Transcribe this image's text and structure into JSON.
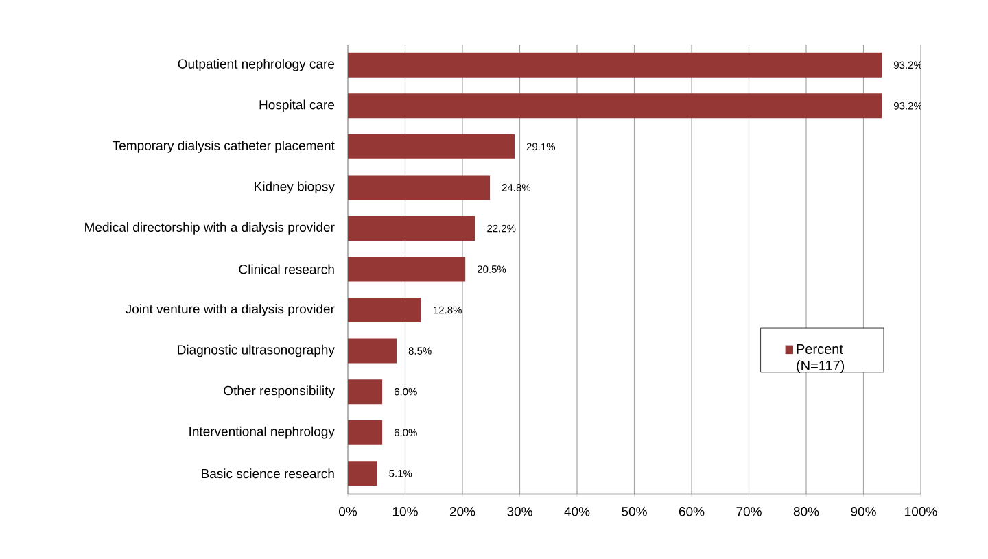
{
  "chart_data": {
    "type": "bar",
    "orientation": "horizontal",
    "categories": [
      "Outpatient nephrology care",
      "Hospital care",
      "Temporary dialysis catheter placement",
      "Kidney biopsy",
      "Medical directorship with a dialysis provider",
      "Clinical research",
      "Joint venture with a dialysis provider",
      "Diagnostic ultrasonography",
      "Other responsibility",
      "Interventional nephrology",
      "Basic science research"
    ],
    "series": [
      {
        "name": "Percent (N=117)",
        "color": "#953735",
        "values": [
          93.2,
          93.2,
          29.1,
          24.8,
          22.2,
          20.5,
          12.8,
          8.5,
          6.0,
          6.0,
          5.1
        ],
        "value_labels": [
          "93.2%",
          "93.2%",
          "29.1%",
          "24.8%",
          "22.2%",
          "20.5%",
          "12.8%",
          "8.5%",
          "6.0%",
          "6.0%",
          "5.1%"
        ]
      }
    ],
    "xlim": [
      0,
      100
    ],
    "xticks": [
      {
        "value": 0,
        "label": "0%"
      },
      {
        "value": 10,
        "label": "10%"
      },
      {
        "value": 20,
        "label": "20%"
      },
      {
        "value": 30,
        "label": "30%"
      },
      {
        "value": 40,
        "label": "40%"
      },
      {
        "value": 50,
        "label": "50%"
      },
      {
        "value": 60,
        "label": "60%"
      },
      {
        "value": 70,
        "label": "70%"
      },
      {
        "value": 80,
        "label": "80%"
      },
      {
        "value": 90,
        "label": "90%"
      },
      {
        "value": 100,
        "label": "100%"
      }
    ],
    "grid": "x",
    "legend": "right"
  }
}
